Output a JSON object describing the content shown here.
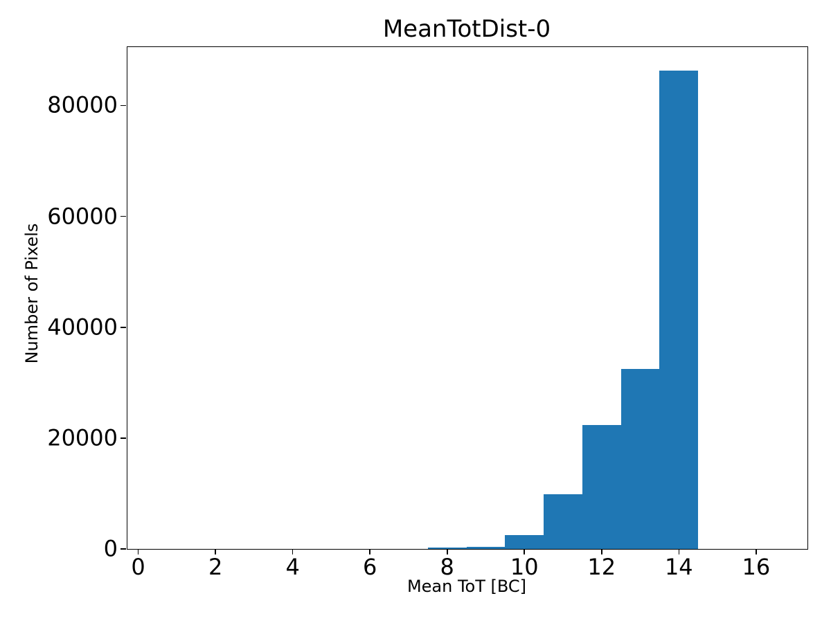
{
  "chart_data": {
    "type": "bar",
    "subtype": "histogram",
    "title": "MeanTotDist-0",
    "xlabel": "Mean ToT [BC]",
    "ylabel": "Number of Pixels",
    "bin_edges": [
      7.5,
      8.5,
      9.5,
      10.5,
      11.5,
      12.5,
      13.5,
      14.5
    ],
    "counts": [
      190,
      400,
      2500,
      9900,
      22400,
      32500,
      86300
    ],
    "bar_color": "#1f77b4",
    "xlim": [
      -0.28,
      17.33
    ],
    "ylim": [
      0,
      90550
    ],
    "x_ticks": [
      {
        "value": 0,
        "label": "0"
      },
      {
        "value": 2,
        "label": "2"
      },
      {
        "value": 4,
        "label": "4"
      },
      {
        "value": 6,
        "label": "6"
      },
      {
        "value": 8,
        "label": "8"
      },
      {
        "value": 10,
        "label": "10"
      },
      {
        "value": 12,
        "label": "12"
      },
      {
        "value": 14,
        "label": "14"
      },
      {
        "value": 16,
        "label": "16"
      }
    ],
    "y_ticks": [
      {
        "value": 0,
        "label": "0"
      },
      {
        "value": 20000,
        "label": "20000"
      },
      {
        "value": 40000,
        "label": "40000"
      },
      {
        "value": 60000,
        "label": "60000"
      },
      {
        "value": 80000,
        "label": "80000"
      }
    ],
    "grid": false,
    "legend": null,
    "background_color": "#ffffff",
    "spine_color": "#000000"
  }
}
